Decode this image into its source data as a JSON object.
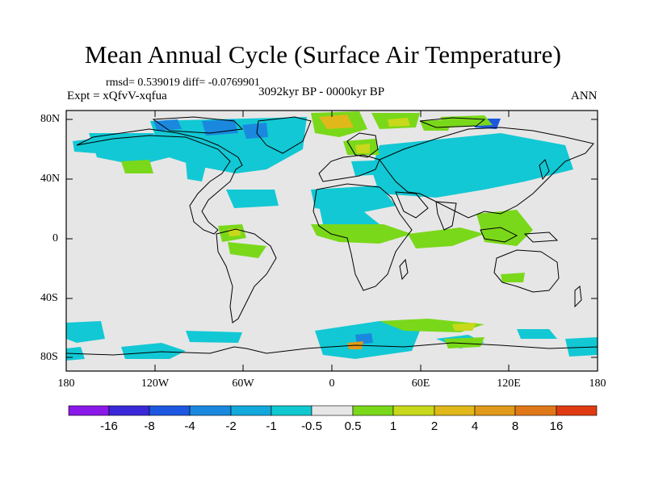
{
  "title": "Mean Annual Cycle (Surface Air Temperature)",
  "stats_line": "rmsd= 0.539019 diff= -0.0769901",
  "experiment": "Expt = xQfvV-xqfua",
  "period": "3092kyr BP - 0000kyr BP",
  "season": "ANN",
  "y_axis_labels": [
    "80N",
    "40N",
    "0",
    "40S",
    "80S"
  ],
  "x_axis_labels": [
    "180",
    "120W",
    "60W",
    "0",
    "60E",
    "120E",
    "180"
  ],
  "colorbar": {
    "labels": [
      "-16",
      "-8",
      "-4",
      "-2",
      "-1",
      "-0.5",
      "0.5",
      "1",
      "2",
      "4",
      "8",
      "16"
    ],
    "colors": [
      "#8a18e8",
      "#3a28d8",
      "#1e58e0",
      "#1a88de",
      "#12a8dc",
      "#10c8d0",
      "#e6e6e6",
      "#7ad81a",
      "#c8d81a",
      "#e0b81a",
      "#e09a1a",
      "#e0781a",
      "#e03a12"
    ]
  },
  "map_background": "#e6e6e6"
}
